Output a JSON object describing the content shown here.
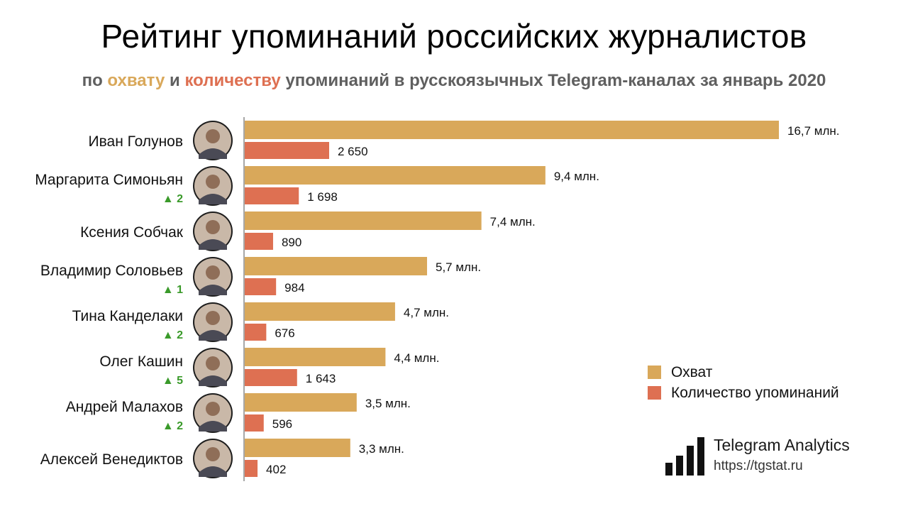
{
  "header": {
    "title": "Рейтинг упоминаний российских журналистов",
    "subtitle_prefix": "по",
    "subtitle_reach": "охвату",
    "subtitle_and": "и",
    "subtitle_count": "количеству",
    "subtitle_rest": "упоминаний в русскоязычных Telegram-каналах за январь 2020"
  },
  "legend": {
    "reach": "Охват",
    "count": "Количество упоминаний"
  },
  "brand": {
    "name": "Telegram Analytics",
    "url": "https://tgstat.ru"
  },
  "colors": {
    "reach": "#d9a85a",
    "count": "#de7052",
    "rank_up": "#3a9a2a",
    "subtitle": "#5f5f5f"
  },
  "chart_data": {
    "type": "bar",
    "orientation": "horizontal",
    "legend_position": "right",
    "grid": false,
    "categories": [
      "Иван Голунов",
      "Маргарита Симоньян",
      "Ксения Собчак",
      "Владимир Соловьев",
      "Тина Канделаки",
      "Олег Кашин",
      "Андрей Малахов",
      "Алексей Венедиктов"
    ],
    "rank_changes": [
      "",
      "▲ 2",
      "",
      "▲ 1",
      "▲ 2",
      "▲ 5",
      "▲ 2",
      ""
    ],
    "series": [
      {
        "name": "Охват",
        "values": [
          16.7,
          9.4,
          7.4,
          5.7,
          4.7,
          4.4,
          3.5,
          3.3
        ],
        "labels": [
          "16,7 млн.",
          "9,4 млн.",
          "7,4 млн.",
          "5,7 млн.",
          "4,7 млн.",
          "4,4 млн.",
          "3,5 млн.",
          "3,3 млн."
        ]
      },
      {
        "name": "Количество упоминаний",
        "values": [
          2650,
          1698,
          890,
          984,
          676,
          1643,
          596,
          402
        ],
        "labels": [
          "2 650",
          "1 698",
          "890",
          "984",
          "676",
          "1 643",
          "596",
          "402"
        ]
      }
    ]
  }
}
